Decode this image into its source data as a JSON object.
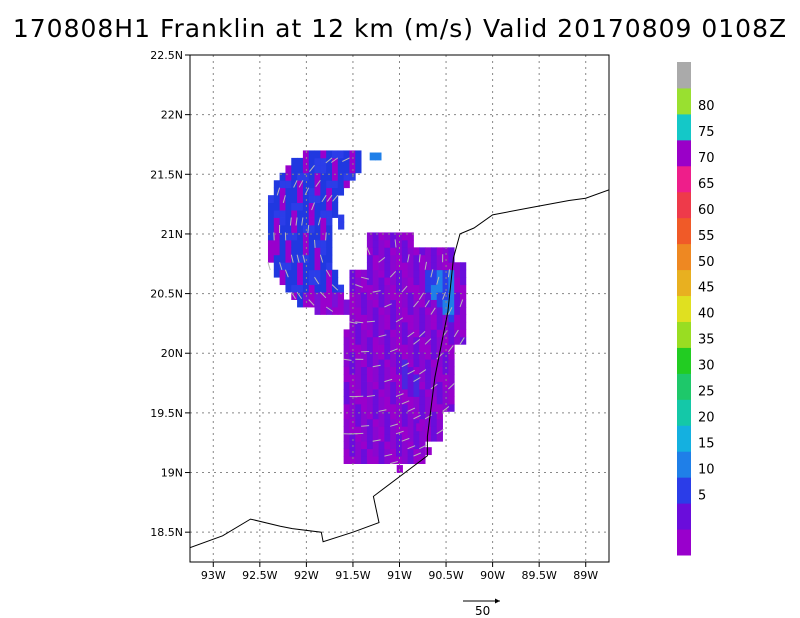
{
  "title": "170808H1 Franklin at 12 km (m/s) Valid 20170809 0108Z",
  "map": {
    "lon_range": [
      -93.25,
      -88.75
    ],
    "lat_range": [
      18.25,
      22.5
    ],
    "grid_lons": [
      -93,
      -92.5,
      -92,
      -91.5,
      -91,
      -90.5,
      -90,
      -89.5,
      -89
    ],
    "grid_lats": [
      18.5,
      19,
      19.5,
      20,
      20.5,
      21,
      21.5,
      22,
      22.5
    ],
    "x_tick_labels": [
      "93W",
      "92.5W",
      "92W",
      "91.5W",
      "91W",
      "90.5W",
      "90W",
      "89.5W",
      "89W"
    ],
    "y_tick_labels": [
      "18.5N",
      "19N",
      "19.5N",
      "20N",
      "20.5N",
      "21N",
      "21.5N",
      "22N",
      "22.5N"
    ],
    "coastline": [
      [
        -93.25,
        18.37
      ],
      [
        -92.9,
        18.47
      ],
      [
        -92.6,
        18.61
      ],
      [
        -92.28,
        18.55
      ],
      [
        -92.15,
        18.53
      ],
      [
        -91.84,
        18.5
      ],
      [
        -91.82,
        18.42
      ],
      [
        -91.5,
        18.5
      ],
      [
        -91.22,
        18.58
      ],
      [
        -91.28,
        18.8
      ],
      [
        -90.7,
        19.14
      ],
      [
        -90.7,
        19.3
      ],
      [
        -90.62,
        19.8
      ],
      [
        -90.48,
        20.35
      ],
      [
        -90.42,
        20.8
      ],
      [
        -90.35,
        21.0
      ],
      [
        -90.2,
        21.05
      ],
      [
        -90.0,
        21.16
      ],
      [
        -89.6,
        21.22
      ],
      [
        -89.18,
        21.28
      ],
      [
        -89.0,
        21.3
      ],
      [
        -88.75,
        21.37
      ]
    ]
  },
  "wind_field": {
    "units": "m/s",
    "cells_description": "approximate wind speed cells at 12 km altitude",
    "regions": [
      {
        "name": "western arc",
        "speed_mps": 10
      },
      {
        "name": "central block",
        "speed_mps": 5
      },
      {
        "name": "northeast patch",
        "speed_mps": 13
      }
    ]
  },
  "colorbar": {
    "levels": [
      "5",
      "10",
      "15",
      "20",
      "25",
      "30",
      "35",
      "40",
      "45",
      "50",
      "55",
      "60",
      "65",
      "70",
      "75",
      "80"
    ],
    "colors": [
      "#9900cc",
      "#6a0ddb",
      "#2b3de8",
      "#1f7fe8",
      "#14b0e0",
      "#14c8a8",
      "#1ec86a",
      "#22cc22",
      "#99dd22",
      "#e0e020",
      "#e8b020",
      "#ee8822",
      "#f05a28",
      "#ee3a4a",
      "#ee1e8a",
      "#9a00c8",
      "#14c8c8",
      "#99e030",
      "#aaaaaa"
    ]
  },
  "reference_vector": {
    "label": "50"
  }
}
